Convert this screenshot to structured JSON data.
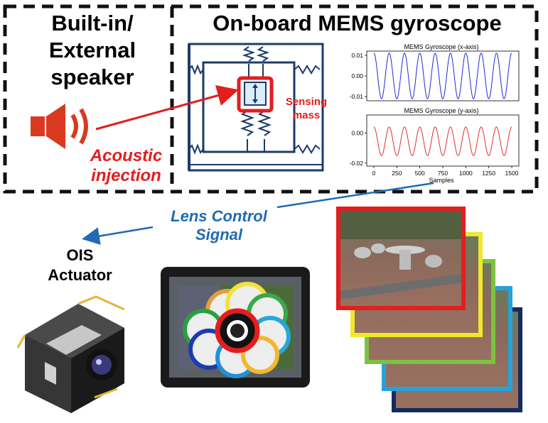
{
  "speaker_box": {
    "title_line1": "Built-in/",
    "title_line2": "External",
    "title_line3": "speaker"
  },
  "gyro_box": {
    "title": "On-board MEMS gyroscope"
  },
  "acoustic_label": {
    "line1": "Acoustic",
    "line2": "injection"
  },
  "sensing_label": {
    "line1": "Sensing",
    "line2": "mass"
  },
  "lens_label": {
    "line1": "Lens Control",
    "line2": "Signal"
  },
  "ois_label": {
    "line1": "OIS",
    "line2": "Actuator"
  },
  "colors": {
    "red": "#e31e1e",
    "blue": "#1f6bb4",
    "navy": "#1c3b6b"
  },
  "chart_data": [
    {
      "type": "line",
      "title": "MEMS Gyroscope (x-axis)",
      "xlabel": "",
      "ylabel": "",
      "ylim": [
        -0.012,
        0.012
      ],
      "yticks": [
        "0.01",
        "0.00",
        "-0.01"
      ],
      "series": [
        {
          "color": "#1f2bd6",
          "amplitude": 0.011,
          "cycles": 9,
          "x": [
            0,
            1500
          ]
        }
      ]
    },
    {
      "type": "line",
      "title": "MEMS Gyroscope (y-axis)",
      "xlabel": "Samples",
      "ylabel": "",
      "ylim": [
        -0.022,
        0.012
      ],
      "yticks": [
        "0.00",
        "-0.02"
      ],
      "xticks": [
        "0",
        "250",
        "500",
        "750",
        "1000",
        "1250",
        "1500"
      ],
      "series": [
        {
          "color": "#e03030",
          "amplitude": 0.0095,
          "offset": -0.0055,
          "cycles": 9,
          "x": [
            0,
            1500
          ]
        }
      ]
    }
  ]
}
